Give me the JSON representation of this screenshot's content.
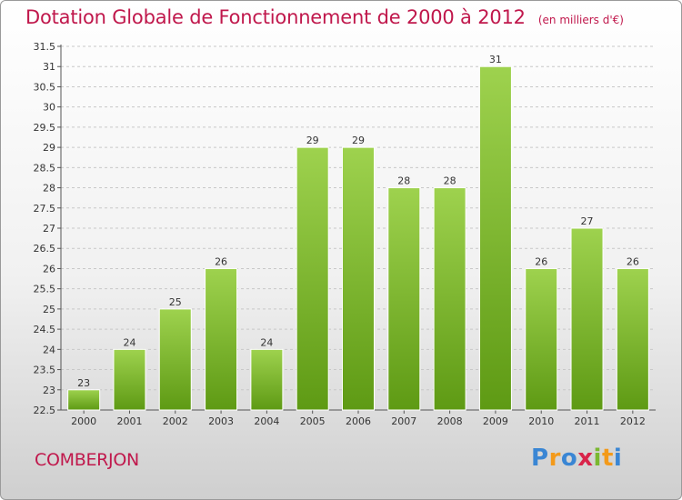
{
  "title": "Dotation Globale de Fonctionnement de 2000 à 2012",
  "subtitle": "(en milliers d'€)",
  "commune": "COMBERJON",
  "logo": {
    "text": "Proxiti",
    "colors": [
      "#3a86d4",
      "#f39a1a",
      "#3a86d4",
      "#d9244a",
      "#7ab830",
      "#f39a1a",
      "#3a86d4"
    ]
  },
  "colors": {
    "bar_top": "#9ed24e",
    "bar_bottom": "#5e9a14",
    "title": "#c0184c",
    "grid": "#c8c8c8"
  },
  "chart_data": {
    "type": "bar",
    "title": "Dotation Globale de Fonctionnement de 2000 à 2012",
    "subtitle": "(en milliers d'€)",
    "xlabel": "",
    "ylabel": "",
    "categories": [
      "2000",
      "2001",
      "2002",
      "2003",
      "2004",
      "2005",
      "2006",
      "2007",
      "2008",
      "2009",
      "2010",
      "2011",
      "2012"
    ],
    "values": [
      23,
      24,
      25,
      26,
      24,
      29,
      29,
      28,
      28,
      31,
      26,
      27,
      26
    ],
    "value_labels": [
      "23",
      "24",
      "25",
      "26",
      "24",
      "29",
      "29",
      "28",
      "28",
      "31",
      "26",
      "27",
      "26"
    ],
    "ylim": [
      22.5,
      31.5
    ],
    "yticks": [
      "22.5",
      "23",
      "23.5",
      "24",
      "24.5",
      "25",
      "25.5",
      "26",
      "26.5",
      "27",
      "27.5",
      "28",
      "28.5",
      "29",
      "29.5",
      "30",
      "30.5",
      "31",
      "31.5"
    ],
    "grid": true,
    "legend": "none"
  }
}
